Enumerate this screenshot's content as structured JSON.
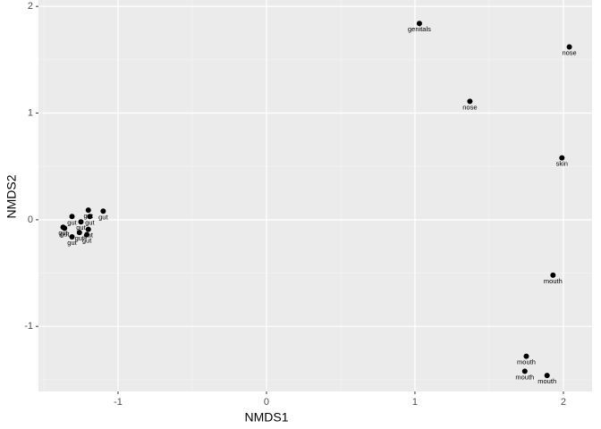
{
  "chart_data": {
    "type": "scatter",
    "xlabel": "NMDS1",
    "ylabel": "NMDS2",
    "x": [
      1.03,
      2.04,
      1.37,
      1.99,
      1.93,
      1.75,
      1.74,
      1.89,
      -1.1,
      -1.2,
      -1.31,
      -1.19,
      -1.25,
      -1.37,
      -1.36,
      -1.2,
      -1.26,
      -1.31,
      -1.21
    ],
    "values": [
      1.84,
      1.62,
      1.11,
      0.58,
      -0.52,
      -1.28,
      -1.42,
      -1.46,
      0.08,
      0.09,
      0.03,
      0.03,
      -0.02,
      -0.07,
      -0.08,
      -0.09,
      -0.12,
      -0.16,
      -0.14
    ],
    "labels": [
      "genitals",
      "nose",
      "nose",
      "skin",
      "mouth",
      "mouth",
      "mouth",
      "mouth",
      "gut",
      "gut",
      "gut",
      "gut",
      "gut",
      "gut",
      "gut",
      "gut",
      "gut",
      "gut",
      "gut"
    ],
    "color": "#000000",
    "xlim": [
      -1.536,
      2.193
    ],
    "ylim": [
      -1.61,
      2.06
    ],
    "xticks": [
      -1,
      0,
      1,
      2
    ],
    "yticks": [
      -1,
      0,
      1,
      2
    ],
    "grid": true
  }
}
